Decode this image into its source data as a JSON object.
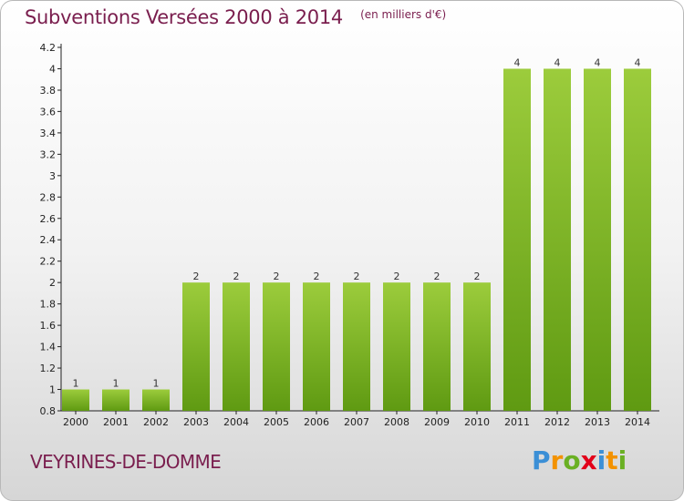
{
  "header": {
    "title": "Subventions Versées 2000 à 2014",
    "subtitle": "(en milliers d'€)"
  },
  "footer": {
    "commune": "VEYRINES-DE-DOMME",
    "logo_letters": [
      "P",
      "r",
      "o",
      "x",
      "i",
      "t",
      "i"
    ],
    "logo_colors": [
      "#3b8fd6",
      "#f39200",
      "#6ab023",
      "#e2001a",
      "#3b8fd6",
      "#f39200",
      "#6ab023"
    ]
  },
  "colors": {
    "bar_light": "#9ccc3c",
    "bar_dark": "#5f9a12",
    "title": "#7a1e4e"
  },
  "chart_data": {
    "type": "bar",
    "categories": [
      "2000",
      "2001",
      "2002",
      "2003",
      "2004",
      "2005",
      "2006",
      "2007",
      "2008",
      "2009",
      "2010",
      "2011",
      "2012",
      "2013",
      "2014"
    ],
    "values": [
      1,
      1,
      1,
      2,
      2,
      2,
      2,
      2,
      2,
      2,
      2,
      4,
      4,
      4,
      4
    ],
    "data_labels": [
      "1",
      "1",
      "1",
      "2",
      "2",
      "2",
      "2",
      "2",
      "2",
      "2",
      "2",
      "4",
      "4",
      "4",
      "4"
    ],
    "ylim": [
      0.8,
      4.2
    ],
    "yticks": [
      "0.8",
      "1",
      "1.2",
      "1.4",
      "1.6",
      "1.8",
      "2",
      "2.2",
      "2.4",
      "2.6",
      "2.8",
      "3",
      "3.2",
      "3.4",
      "3.6",
      "3.8",
      "4",
      "4.2"
    ],
    "title": "Subventions Versées 2000 à 2014",
    "xlabel": "",
    "ylabel": "",
    "grid": false,
    "legend": "none"
  }
}
